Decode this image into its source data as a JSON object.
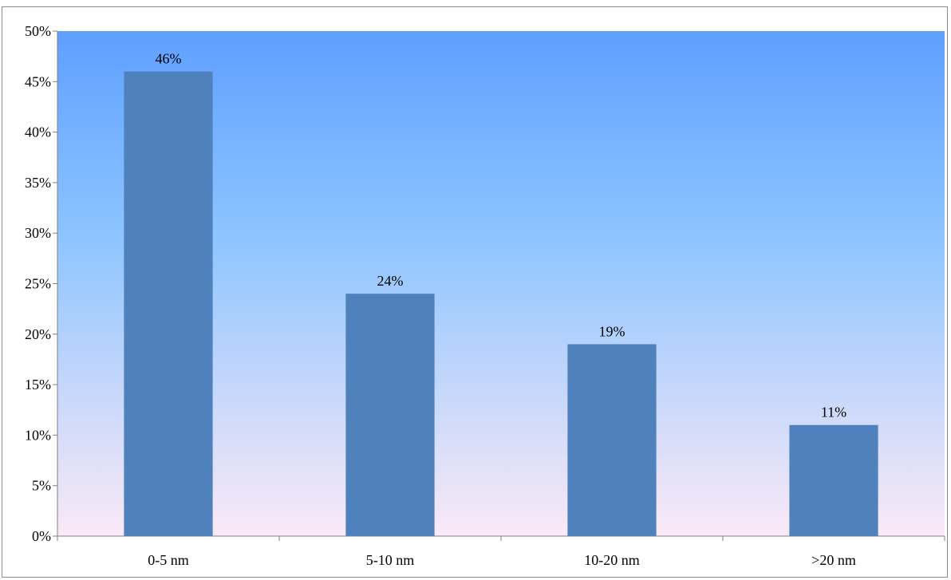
{
  "chart_data": {
    "type": "bar",
    "title": "",
    "xlabel": "",
    "ylabel": "",
    "categories": [
      "0-5 nm",
      "5-10 nm",
      "10-20 nm",
      ">20 nm"
    ],
    "values": [
      46,
      24,
      19,
      11
    ],
    "data_labels": [
      "46%",
      "24%",
      "19%",
      "11%"
    ],
    "ylim": [
      0,
      50
    ],
    "y_ticks": [
      0,
      5,
      10,
      15,
      20,
      25,
      30,
      35,
      40,
      45,
      50
    ],
    "y_tick_labels": [
      "0%",
      "5%",
      "10%",
      "15%",
      "20%",
      "25%",
      "30%",
      "35%",
      "40%",
      "45%",
      "50%"
    ],
    "grid": false,
    "legend": "none",
    "colors": {
      "bar": "#4f81bd",
      "plot_bg_top": "#5f9fff",
      "plot_bg_mid": "#8cc4ff",
      "plot_bg_bottom": "#fbe9f7",
      "axis": "#808080"
    }
  }
}
